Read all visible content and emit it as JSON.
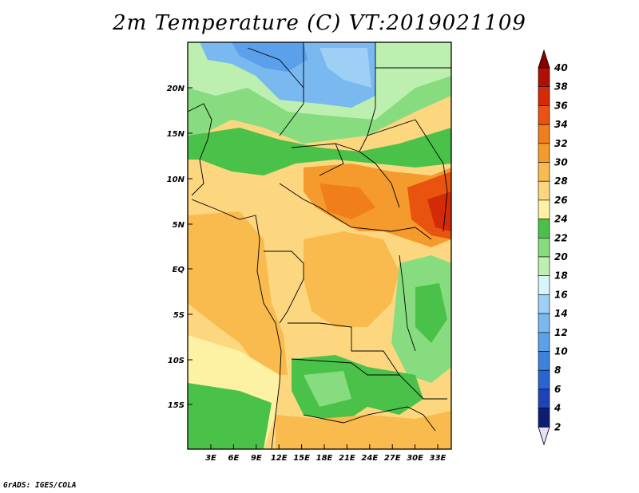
{
  "title": "2m Temperature (C) VT:2019021109",
  "footer": "GrADS: IGES/COLA",
  "map": {
    "lat_labels": [
      "20N",
      "15N",
      "10N",
      "5N",
      "EQ",
      "5S",
      "10S",
      "15S"
    ],
    "lon_labels": [
      "3E",
      "6E",
      "9E",
      "12E",
      "15E",
      "18E",
      "21E",
      "24E",
      "27E",
      "30E",
      "33E"
    ]
  },
  "colorbar": {
    "ticks": [
      "2",
      "4",
      "6",
      "8",
      "10",
      "12",
      "14",
      "16",
      "18",
      "20",
      "22",
      "24",
      "26",
      "28",
      "30",
      "32",
      "34",
      "36",
      "38",
      "40"
    ],
    "colors": [
      "#0b1e73",
      "#1c44b8",
      "#2a64d0",
      "#3c82dc",
      "#5aa0ea",
      "#7ab8f0",
      "#9ecff5",
      "#d8f4fb",
      "#bdf0b0",
      "#88dc80",
      "#4ac24a",
      "#fdf2a4",
      "#fcd780",
      "#f9bb4d",
      "#f59a2c",
      "#f07e1a",
      "#e85410",
      "#d42a08",
      "#b01004",
      "#8a0000"
    ],
    "low_end_color": "#e6e0f8"
  }
}
